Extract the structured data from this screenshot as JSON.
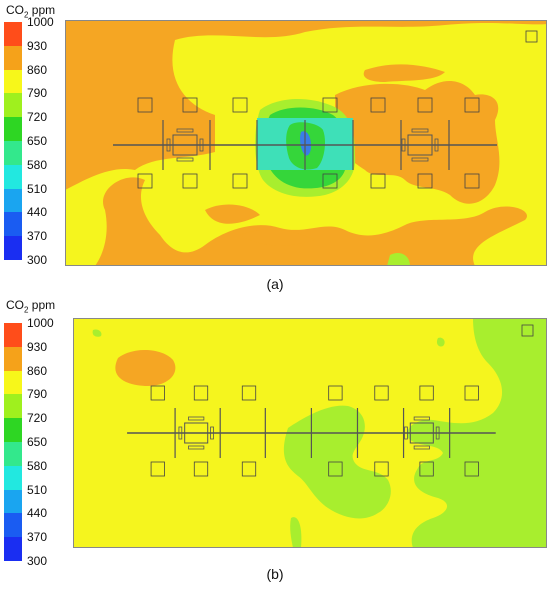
{
  "panels": [
    {
      "id": "a",
      "caption": "(a)",
      "legend_title_main": "CO",
      "legend_title_sub": "2",
      "legend_title_unit": " ppm",
      "legend_ticks": [
        "1000",
        "930",
        "860",
        "790",
        "720",
        "650",
        "580",
        "510",
        "440",
        "370",
        "300"
      ],
      "legend_colors": [
        "#ff4d1a",
        "#f5a21a",
        "#f7f71a",
        "#9ff01e",
        "#2ed623",
        "#33e88c",
        "#22e8e0",
        "#1aa5f0",
        "#1a5cf2",
        "#1a2ef2"
      ]
    },
    {
      "id": "b",
      "caption": "(b)",
      "legend_title_main": "CO",
      "legend_title_sub": "2",
      "legend_title_unit": " ppm",
      "legend_ticks": [
        "1000",
        "930",
        "860",
        "790",
        "720",
        "650",
        "580",
        "510",
        "440",
        "370",
        "300"
      ],
      "legend_colors": [
        "#ff4d1a",
        "#f5a21a",
        "#f7f71a",
        "#9ff01e",
        "#2ed623",
        "#33e88c",
        "#22e8e0",
        "#1aa5f0",
        "#1a5cf2",
        "#1a2ef2"
      ]
    }
  ],
  "field_colors": {
    "orange": "#f5a623",
    "yellow": "#f5f51e",
    "lightgreen": "#a8ee2e",
    "green": "#35d63a",
    "cyan": "#3ee0b8",
    "blue": "#3a7de8"
  }
}
